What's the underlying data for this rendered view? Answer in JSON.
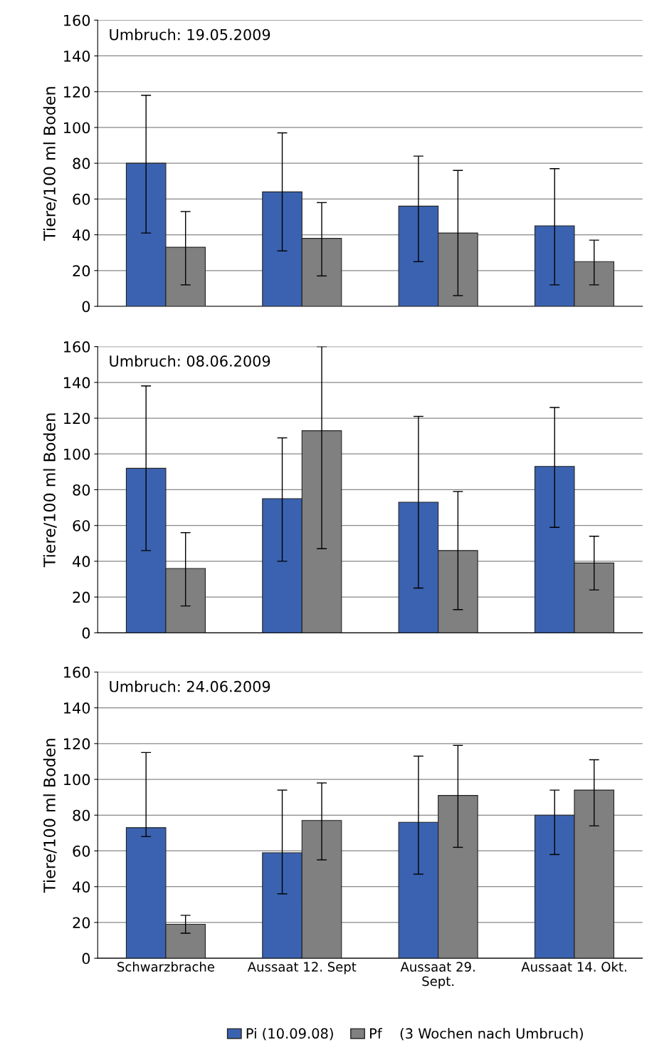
{
  "chart_data": [
    {
      "type": "bar",
      "categories": [
        null,
        null,
        null,
        null
      ],
      "ylabel": "Tiere/100 ml Boden",
      "ylim": [
        0,
        160
      ],
      "yticks": [
        0,
        20,
        40,
        60,
        80,
        100,
        120,
        140,
        160
      ],
      "grid": "y",
      "tick_labels": "y",
      "annotations": [
        "Umbruch: 19.05.2009"
      ],
      "series": [
        {
          "color": "#3a62b0",
          "values": [
            80,
            64,
            56,
            45
          ],
          "errors": [
            [
              41,
              118
            ],
            [
              31,
              97
            ],
            [
              25,
              84
            ],
            [
              12,
              77
            ]
          ]
        },
        {
          "color": "#808080",
          "values": [
            33,
            38,
            41,
            25
          ],
          "errors": [
            [
              12,
              53
            ],
            [
              17,
              58
            ],
            [
              6,
              76
            ],
            [
              12,
              37
            ]
          ]
        }
      ]
    },
    {
      "type": "bar",
      "categories": [
        null,
        null,
        null,
        null
      ],
      "ylabel": "Tiere/100 ml Boden",
      "ylim": [
        0,
        160
      ],
      "yticks": [
        0,
        20,
        40,
        60,
        80,
        100,
        120,
        140,
        160
      ],
      "grid": "y",
      "tick_labels": "y",
      "annotations": [
        "Umbruch: 08.06.2009"
      ],
      "series": [
        {
          "color": "#3a62b0",
          "values": [
            92,
            75,
            73,
            93
          ],
          "errors": [
            [
              46,
              138
            ],
            [
              40,
              109
            ],
            [
              25,
              121
            ],
            [
              59,
              126
            ]
          ]
        },
        {
          "color": "#808080",
          "values": [
            36,
            113,
            46,
            39
          ],
          "errors": [
            [
              15,
              56
            ],
            [
              47,
              160
            ],
            [
              13,
              79
            ],
            [
              24,
              54
            ]
          ]
        }
      ]
    },
    {
      "type": "bar",
      "categories": [
        "Schwarzbrache",
        "Aussaat 12. Sept",
        "Aussaat 29.\nSept.",
        "Aussaat 14. Okt."
      ],
      "ylabel": "Tiere/100 ml Boden",
      "ylim": [
        0,
        160
      ],
      "yticks": [
        0,
        20,
        40,
        60,
        80,
        100,
        120,
        140,
        160
      ],
      "grid": "y",
      "legend": "bottom",
      "annotations": [
        "Umbruch: 24.06.2009",
        "(3 Wochen nach Umbruch)"
      ],
      "series": [
        {
          "name": "Pi (10.09.08)",
          "color": "#3a62b0",
          "values": [
            73,
            59,
            76,
            80
          ],
          "errors": [
            [
              68,
              115
            ],
            [
              36,
              94
            ],
            [
              47,
              113
            ],
            [
              58,
              94
            ]
          ]
        },
        {
          "name": "Pf",
          "color": "#808080",
          "values": [
            19,
            77,
            91,
            94
          ],
          "errors": [
            [
              14,
              24
            ],
            [
              55,
              98
            ],
            [
              62,
              119
            ],
            [
              74,
              111
            ]
          ]
        }
      ]
    }
  ]
}
